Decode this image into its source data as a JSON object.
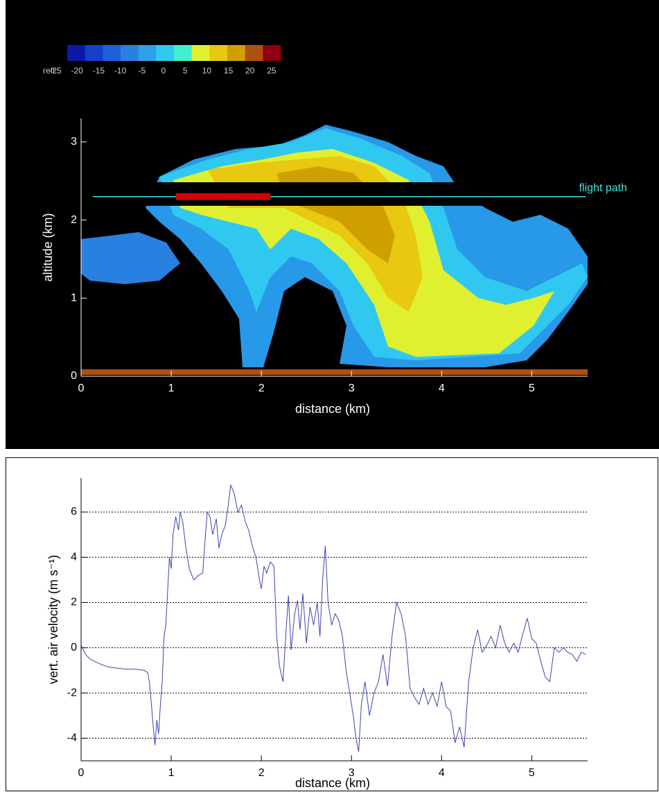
{
  "chart_data": [
    {
      "type": "image",
      "xlabel": "distance (km)",
      "ylabel": "altitude (km)",
      "xlim": [
        0,
        5.62
      ],
      "ylim": [
        0,
        3.3
      ],
      "xticks": [
        0,
        1,
        2,
        3,
        4,
        5
      ],
      "yticks": [
        0,
        1,
        2,
        3
      ],
      "colorbar": {
        "label": "refl:",
        "ticks": [
          -25,
          -20,
          -15,
          -10,
          -5,
          0,
          5,
          10,
          15,
          20,
          25
        ],
        "colors": [
          "#0a1aa6",
          "#1540c8",
          "#1e60d8",
          "#2a80e0",
          "#30a0e8",
          "#30c8f0",
          "#40f0d0",
          "#e0f030",
          "#e8c810",
          "#d0a000",
          "#b05010",
          "#900010"
        ]
      },
      "flight_path": {
        "label": "flight path",
        "altitude": 2.3,
        "x": [
          0.13,
          5.6
        ],
        "color": "#40e0e0"
      },
      "highlight": {
        "x": [
          1.05,
          2.1
        ],
        "color": "#d00000"
      }
    },
    {
      "type": "line",
      "xlabel": "distance (km)",
      "ylabel": "vert. air velocity (m s⁻¹)",
      "xlim": [
        0,
        5.62
      ],
      "ylim": [
        -5,
        7.5
      ],
      "xticks": [
        0,
        1,
        2,
        3,
        4,
        5
      ],
      "yticks": [
        -4,
        -2,
        0,
        2,
        4,
        6
      ],
      "grid": true,
      "color": "#3a44b0",
      "x": [
        0,
        0.05,
        0.1,
        0.2,
        0.3,
        0.4,
        0.5,
        0.6,
        0.7,
        0.74,
        0.76,
        0.78,
        0.8,
        0.82,
        0.84,
        0.86,
        0.88,
        0.9,
        0.92,
        0.94,
        0.96,
        0.98,
        1.0,
        1.02,
        1.05,
        1.08,
        1.1,
        1.13,
        1.16,
        1.2,
        1.25,
        1.3,
        1.35,
        1.38,
        1.4,
        1.43,
        1.46,
        1.5,
        1.53,
        1.56,
        1.6,
        1.63,
        1.66,
        1.7,
        1.74,
        1.78,
        1.82,
        1.86,
        1.9,
        1.94,
        1.98,
        2.0,
        2.03,
        2.06,
        2.1,
        2.14,
        2.17,
        2.2,
        2.24,
        2.27,
        2.3,
        2.33,
        2.37,
        2.4,
        2.43,
        2.46,
        2.5,
        2.54,
        2.58,
        2.62,
        2.65,
        2.68,
        2.71,
        2.74,
        2.78,
        2.82,
        2.86,
        2.9,
        2.94,
        2.98,
        3.02,
        3.05,
        3.08,
        3.11,
        3.15,
        3.2,
        3.25,
        3.3,
        3.35,
        3.4,
        3.45,
        3.5,
        3.55,
        3.6,
        3.65,
        3.7,
        3.75,
        3.8,
        3.85,
        3.9,
        3.95,
        4.0,
        4.05,
        4.1,
        4.15,
        4.2,
        4.25,
        4.3,
        4.35,
        4.4,
        4.45,
        4.5,
        4.55,
        4.6,
        4.65,
        4.7,
        4.75,
        4.8,
        4.85,
        4.9,
        4.95,
        5.0,
        5.05,
        5.1,
        5.15,
        5.2,
        5.25,
        5.3,
        5.35,
        5.4,
        5.45,
        5.5,
        5.55,
        5.6
      ],
      "values": [
        0.1,
        -0.3,
        -0.5,
        -0.7,
        -0.85,
        -0.9,
        -0.95,
        -0.95,
        -1.0,
        -1.1,
        -1.6,
        -2.5,
        -3.5,
        -4.3,
        -3.2,
        -3.8,
        -2.5,
        -1.5,
        0.5,
        1.0,
        2.5,
        4.0,
        3.5,
        5.0,
        5.8,
        5.2,
        6.0,
        5.5,
        4.5,
        3.5,
        3.0,
        3.2,
        3.3,
        5.0,
        6.0,
        5.8,
        5.0,
        5.7,
        4.4,
        5.0,
        5.4,
        6.2,
        7.2,
        6.8,
        6.0,
        6.3,
        5.6,
        5.2,
        4.5,
        4.0,
        3.0,
        2.6,
        3.6,
        3.3,
        3.8,
        3.6,
        0.5,
        -0.8,
        -1.5,
        0.5,
        2.3,
        -0.1,
        1.5,
        2.1,
        0.8,
        2.4,
        0.2,
        1.8,
        1.0,
        2.0,
        0.5,
        3.0,
        4.5,
        2.0,
        1.0,
        1.5,
        1.2,
        0.5,
        -1.0,
        -2.0,
        -3.0,
        -4.0,
        -4.6,
        -2.5,
        -1.5,
        -3.0,
        -2.0,
        -1.5,
        -0.3,
        -1.7,
        0.5,
        2.0,
        1.5,
        0.5,
        -1.8,
        -2.2,
        -2.5,
        -1.8,
        -2.5,
        -2.0,
        -2.6,
        -1.5,
        -2.6,
        -2.8,
        -4.2,
        -3.5,
        -4.4,
        -1.5,
        0.0,
        0.8,
        -0.2,
        0.1,
        0.5,
        0.0,
        1.0,
        0.2,
        -0.2,
        0.2,
        -0.2,
        0.6,
        1.3,
        0.4,
        0.2,
        -0.6,
        -1.3,
        -1.5,
        0.0,
        -0.2,
        0.0,
        -0.2,
        -0.3,
        -0.6,
        -0.2,
        -0.3
      ]
    }
  ]
}
